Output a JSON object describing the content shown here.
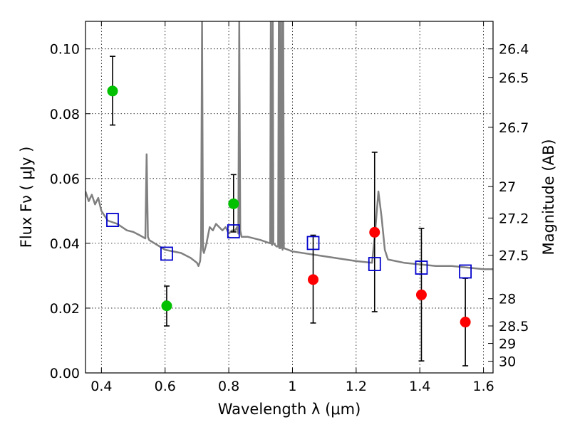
{
  "chart_data": {
    "type": "scatter",
    "xlabel": "Wavelength  λ (μm)",
    "ylabel": "Flux  Fν  ( μJy )",
    "y2label": "Magnitude (AB)",
    "xlim": [
      0.35,
      1.63
    ],
    "ylim": [
      0.0,
      0.1085
    ],
    "grid": true,
    "x_ticks": [
      0.4,
      0.6,
      0.8,
      1.0,
      1.2,
      1.4,
      1.6
    ],
    "x_tick_labels": [
      "0.4",
      "0.6",
      "0.8",
      "1",
      "1.2",
      "1.4",
      "1.6"
    ],
    "y_ticks": [
      0.0,
      0.02,
      0.04,
      0.06,
      0.08,
      0.1
    ],
    "y_tick_labels": [
      "0.00",
      "0.02",
      "0.04",
      "0.06",
      "0.08",
      "0.10"
    ],
    "y2_ticks": [
      {
        "label": "26.4",
        "flux": 0.1
      },
      {
        "label": "26.5",
        "flux": 0.0912
      },
      {
        "label": "26.7",
        "flux": 0.0758
      },
      {
        "label": "27",
        "flux": 0.0575
      },
      {
        "label": "27.2",
        "flux": 0.0478
      },
      {
        "label": "27.5",
        "flux": 0.0363
      },
      {
        "label": "28",
        "flux": 0.0229
      },
      {
        "label": "28.5",
        "flux": 0.0145
      },
      {
        "label": "29",
        "flux": 0.0091
      },
      {
        "label": "30",
        "flux": 0.0036
      }
    ],
    "series": [
      {
        "color": "#00c000",
        "marker": "circle",
        "x": [
          0.435,
          0.605,
          0.815
        ],
        "y": [
          0.087,
          0.0207,
          0.0522
        ],
        "err_low": [
          0.0765,
          0.0145,
          0.0435
        ],
        "err_high": [
          0.0977,
          0.0268,
          0.0612
        ]
      },
      {
        "color": "#ff0000",
        "marker": "circle",
        "x": [
          1.065,
          1.258,
          1.405,
          1.543
        ],
        "y": [
          0.0288,
          0.0434,
          0.0241,
          0.0157
        ],
        "err_low": [
          0.0154,
          0.0189,
          0.0037,
          0.0022
        ],
        "err_high": [
          0.0425,
          0.0681,
          0.0446,
          0.0292
        ]
      },
      {
        "color": "#0000cc",
        "marker": "open-square",
        "x": [
          0.435,
          0.605,
          0.815,
          1.065,
          1.258,
          1.405,
          1.543
        ],
        "y": [
          0.0472,
          0.0368,
          0.0437,
          0.0401,
          0.0336,
          0.0325,
          0.0313
        ]
      }
    ],
    "model_spectrum": {
      "color": "#808080",
      "x": [
        0.35,
        0.36,
        0.37,
        0.38,
        0.39,
        0.4,
        0.42,
        0.45,
        0.48,
        0.5,
        0.52,
        0.538,
        0.542,
        0.546,
        0.55,
        0.6,
        0.65,
        0.68,
        0.7,
        0.705,
        0.71,
        0.713,
        0.716,
        0.719,
        0.722,
        0.73,
        0.74,
        0.75,
        0.76,
        0.78,
        0.79,
        0.8,
        0.81,
        0.82,
        0.826,
        0.83,
        0.833,
        0.836,
        0.84,
        0.86,
        0.9,
        0.93,
        0.932,
        0.934,
        0.936,
        0.938,
        0.94,
        0.95,
        0.955,
        0.957,
        0.959,
        0.961,
        0.963,
        0.965,
        0.967,
        0.969,
        0.971,
        0.973,
        1.0,
        1.1,
        1.2,
        1.25,
        1.26,
        1.27,
        1.28,
        1.29,
        1.3,
        1.35,
        1.4,
        1.45,
        1.5,
        1.55,
        1.6,
        1.63
      ],
      "y": [
        0.056,
        0.053,
        0.055,
        0.052,
        0.054,
        0.05,
        0.047,
        0.046,
        0.044,
        0.0435,
        0.0425,
        0.0415,
        0.0675,
        0.042,
        0.041,
        0.038,
        0.037,
        0.0355,
        0.034,
        0.033,
        0.0345,
        0.039,
        0.1085,
        0.038,
        0.037,
        0.04,
        0.045,
        0.044,
        0.046,
        0.044,
        0.045,
        0.043,
        0.044,
        0.044,
        0.045,
        0.043,
        0.1085,
        0.044,
        0.042,
        0.042,
        0.041,
        0.04,
        0.1085,
        0.04,
        0.0395,
        0.1085,
        0.04,
        0.039,
        0.039,
        0.1085,
        0.0385,
        0.1085,
        0.0385,
        0.039,
        0.1085,
        0.038,
        0.1085,
        0.0385,
        0.0375,
        0.036,
        0.0345,
        0.034,
        0.044,
        0.056,
        0.048,
        0.038,
        0.035,
        0.034,
        0.0335,
        0.033,
        0.033,
        0.0325,
        0.032,
        0.032
      ]
    }
  }
}
